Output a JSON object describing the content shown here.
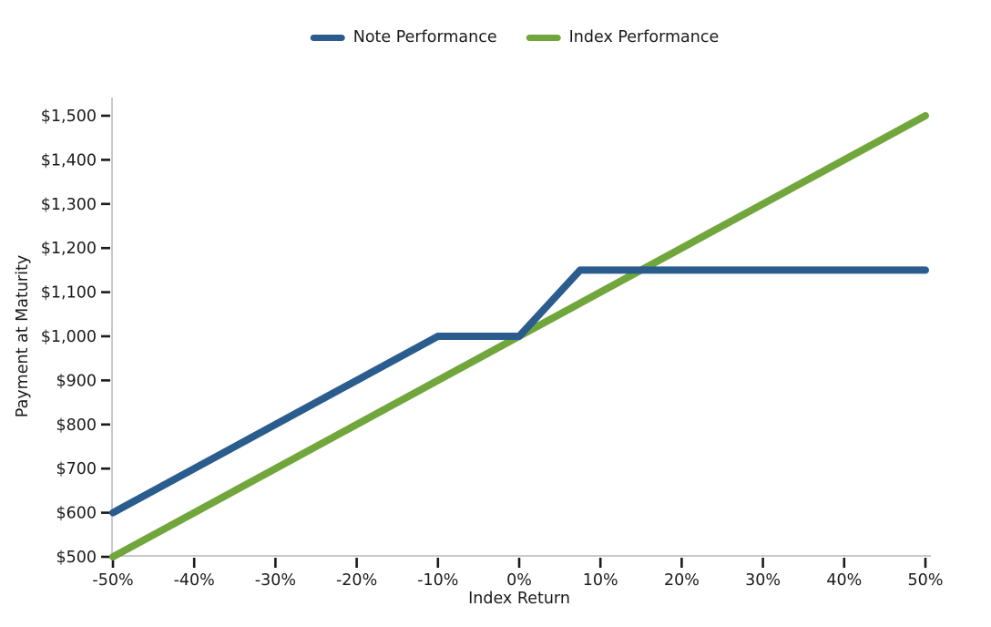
{
  "chart_data": {
    "type": "line",
    "title": "",
    "xlabel": "Index Return",
    "ylabel": "Payment at Maturity",
    "xlim": [
      -50,
      50
    ],
    "ylim": [
      500,
      1500
    ],
    "grid": false,
    "legend_position": "top-center",
    "x_ticks": {
      "values": [
        -50,
        -40,
        -30,
        -20,
        -10,
        0,
        10,
        20,
        30,
        40,
        50
      ],
      "labels": [
        "-50%",
        "-40%",
        "-30%",
        "-20%",
        "-10%",
        "0%",
        "10%",
        "20%",
        "30%",
        "40%",
        "50%"
      ]
    },
    "y_ticks": {
      "values": [
        500,
        600,
        700,
        800,
        900,
        1000,
        1100,
        1200,
        1300,
        1400,
        1500
      ],
      "labels": [
        "$500",
        "$600",
        "$700",
        "$800",
        "$900",
        "$1,000",
        "$1,100",
        "$1,200",
        "$1,300",
        "$1,400",
        "$1,500"
      ]
    },
    "series": [
      {
        "name": "Note Performance",
        "color": "#2a5c8d",
        "points": [
          [
            -50,
            600
          ],
          [
            -10,
            1000
          ],
          [
            0,
            1000
          ],
          [
            7.5,
            1150
          ],
          [
            50,
            1150
          ]
        ]
      },
      {
        "name": "Index Performance",
        "color": "#70a63b",
        "points": [
          [
            -50,
            500
          ],
          [
            50,
            1500
          ]
        ]
      }
    ],
    "style": {
      "axis_line_color": "#c9c9c9",
      "tick_color": "#1a1a1a",
      "text_color": "#1a1a1a",
      "background": "#ffffff",
      "line_width": 8
    }
  }
}
